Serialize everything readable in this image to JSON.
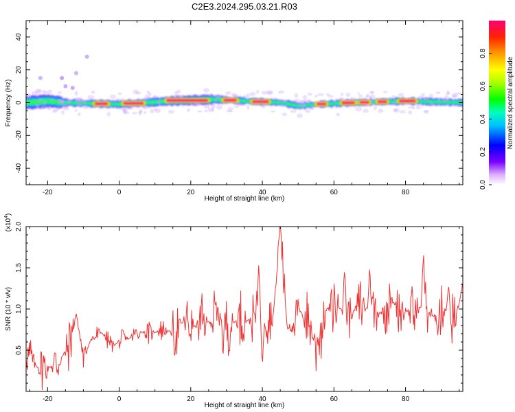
{
  "figure": {
    "title": "C2E3.2024.295.03.21.R03"
  },
  "colorbar": {
    "label": "Normalized spectral amplitude",
    "ticks": [
      "0.0",
      "0.2",
      "0.4",
      "0.6",
      "0.8"
    ],
    "tick_values": [
      0.0,
      0.2,
      0.4,
      0.6,
      0.8
    ],
    "range": [
      0,
      1
    ]
  },
  "chart_data": [
    {
      "type": "heatmap",
      "title": "",
      "xlabel": "Height of straight line (km)",
      "ylabel": "Frequency (Hz)",
      "xlim": [
        -26,
        96
      ],
      "ylim": [
        -50,
        50
      ],
      "x_ticks": [
        -20,
        0,
        20,
        40,
        60,
        80
      ],
      "y_ticks": [
        -40,
        -20,
        0,
        20,
        40
      ],
      "band": {
        "center_hz": [
          [
            -26,
            0
          ],
          [
            -20,
            1
          ],
          [
            -16,
            0
          ],
          [
            0,
            -1
          ],
          [
            14,
            1
          ],
          [
            27,
            2
          ],
          [
            35,
            1
          ],
          [
            45,
            0
          ],
          [
            50,
            -2
          ],
          [
            55,
            -1
          ],
          [
            65,
            0
          ],
          [
            80,
            1
          ],
          [
            96,
            0
          ]
        ],
        "halfwidth_hz": [
          [
            -26,
            4
          ],
          [
            -18,
            4
          ],
          [
            -14,
            2
          ],
          [
            25,
            3
          ],
          [
            30,
            2
          ],
          [
            96,
            2
          ]
        ],
        "peak_segments_km": [
          [
            -7,
            -3
          ],
          [
            1,
            7
          ],
          [
            13,
            25
          ],
          [
            29,
            33
          ],
          [
            37,
            42
          ],
          [
            55,
            58
          ],
          [
            62,
            66
          ],
          [
            67,
            70
          ],
          [
            72,
            75
          ],
          [
            78,
            83
          ]
        ]
      },
      "scatter_blobs": [
        {
          "x": -9,
          "y": 28,
          "amp": 0.15
        },
        {
          "x": -12,
          "y": 18,
          "amp": 0.12
        },
        {
          "x": -13,
          "y": 9,
          "amp": 0.2
        },
        {
          "x": -16,
          "y": 15,
          "amp": 0.25
        },
        {
          "x": -15,
          "y": 10,
          "amp": 0.2
        },
        {
          "x": -22,
          "y": 15,
          "amp": 0.1
        }
      ]
    },
    {
      "type": "line",
      "title": "",
      "xlabel": "Height of straight line (km)",
      "ylabel": "SNR (10 * v/v)",
      "y_multiplier": "(x10",
      "y_multiplier_exp": "4",
      "y_multiplier_close": ")",
      "xlim": [
        -26,
        96
      ],
      "ylim": [
        0,
        2.0
      ],
      "x_ticks": [
        -20,
        0,
        20,
        40,
        60,
        80
      ],
      "y_ticks": [
        0.5,
        1.0,
        1.5,
        2.0
      ],
      "y_tick_labels": [
        "0.5",
        "1.0",
        "1.5",
        "2.0"
      ],
      "color": "#ee3333",
      "x": [
        -26,
        -23,
        -20,
        -17,
        -14,
        -12,
        -10,
        -8,
        -5,
        -2,
        0,
        3,
        6,
        9,
        12,
        15,
        18,
        22,
        25,
        28,
        31,
        34,
        37,
        40,
        43,
        45,
        47,
        50,
        53,
        55,
        58,
        61,
        64,
        67,
        70,
        73,
        76,
        79,
        82,
        85,
        88,
        91,
        94,
        96
      ],
      "y": [
        0.45,
        0.3,
        0.28,
        0.35,
        0.55,
        0.95,
        0.4,
        0.62,
        0.72,
        0.55,
        0.6,
        0.65,
        0.72,
        0.7,
        0.75,
        0.72,
        0.85,
        0.78,
        0.85,
        0.9,
        0.8,
        0.9,
        0.85,
        0.95,
        0.9,
        1.95,
        0.75,
        1.0,
        0.85,
        0.5,
        1.0,
        1.05,
        0.9,
        1.05,
        1.0,
        0.95,
        1.1,
        1.0,
        0.95,
        1.05,
        0.9,
        1.0,
        0.85,
        1.3
      ],
      "spikes": [
        {
          "x": 45,
          "y": 2.0
        },
        {
          "x": 39,
          "y": 1.55
        },
        {
          "x": 55,
          "y": 1.65
        },
        {
          "x": 29,
          "y": 1.62
        },
        {
          "x": 49,
          "y": 1.45
        },
        {
          "x": 85,
          "y": 1.7
        },
        {
          "x": 63,
          "y": 1.5
        },
        {
          "x": 70,
          "y": 1.52
        },
        {
          "x": 92,
          "y": 1.3
        },
        {
          "x": 40,
          "y": 0.3
        },
        {
          "x": 29,
          "y": 0.3
        },
        {
          "x": 55,
          "y": 0.25
        },
        {
          "x": 49,
          "y": 0.6
        }
      ]
    }
  ]
}
